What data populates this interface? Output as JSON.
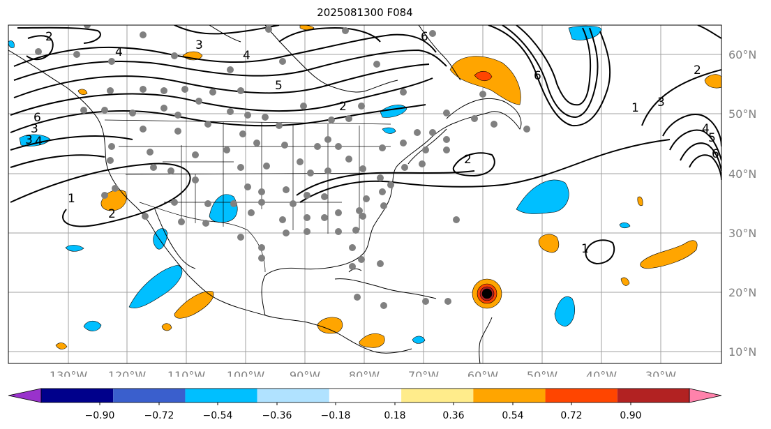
{
  "title": "2025081300 F084",
  "map": {
    "lat_labels": [
      "60°N",
      "50°N",
      "40°N",
      "30°N",
      "20°N",
      "10°N"
    ],
    "lon_labels": [
      "130°W",
      "120°W",
      "110°W",
      "100°W",
      "90°W",
      "80°W",
      "70°W",
      "60°W",
      "50°W",
      "40°W",
      "30°W"
    ],
    "contour_labels": [
      "2",
      "4",
      "3",
      "4",
      "5",
      "2",
      "6",
      "3",
      "6",
      "2",
      "1",
      "3",
      "4",
      "5",
      "6",
      "6",
      "4",
      "3",
      "1",
      "2",
      "2",
      "1"
    ],
    "gridline_color": "#a0a0a0",
    "coast_color": "#000000"
  },
  "colorbar": {
    "tick_labels": [
      "−0.90",
      "−0.72",
      "−0.54",
      "−0.36",
      "−0.18",
      "0.18",
      "0.36",
      "0.54",
      "0.72",
      "0.90"
    ],
    "colors": [
      "#9932cc",
      "#00008b",
      "#3a5fcd",
      "#00bfff",
      "#b0e2ff",
      "#ffffff",
      "#ffec8b",
      "#ffa500",
      "#ff4500",
      "#b22222",
      "#ff82ab"
    ]
  }
}
